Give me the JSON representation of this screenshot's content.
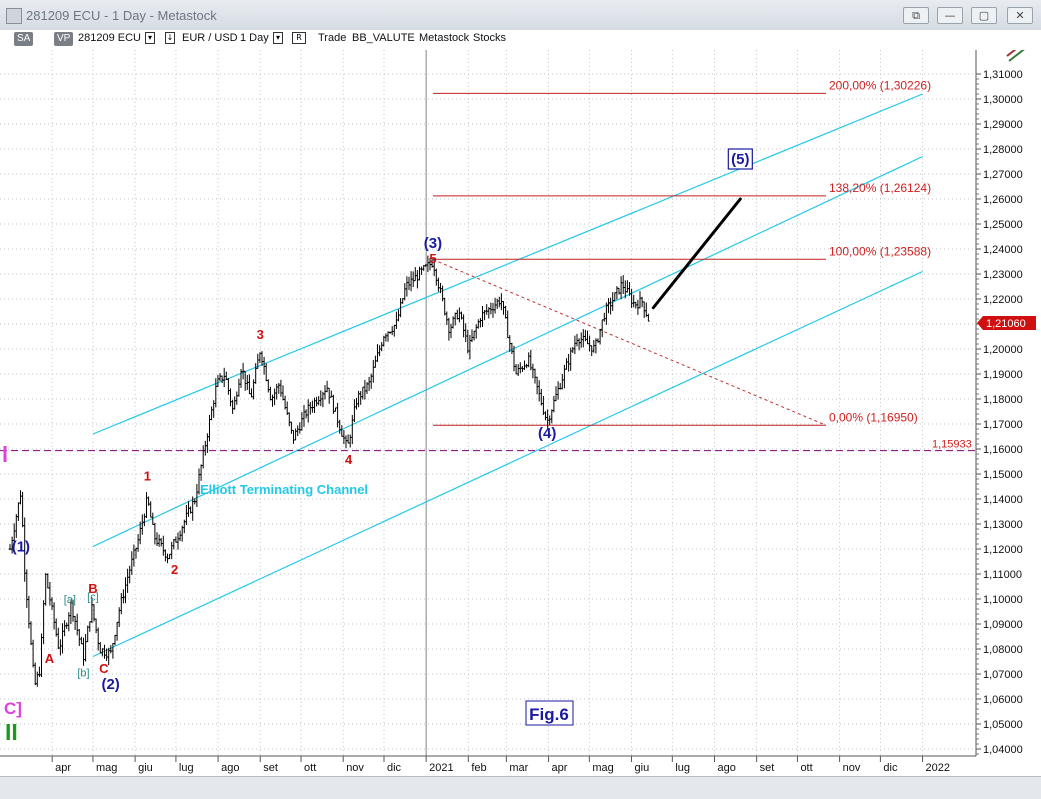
{
  "window": {
    "title": "281209 ECU - 1 Day - Metastock",
    "buttons": [
      "⧉",
      "—",
      "▢",
      "✕"
    ]
  },
  "toolbar": {
    "tag_sa": "SA",
    "tag_vp": "VP",
    "symbol": "281209 ECU",
    "dd1": "▾",
    "dd2": "↓",
    "name": "EUR / USD",
    "period": "1 Day",
    "dd3": "▾",
    "dd4": "R",
    "mode": "Trade",
    "indicator": "BB_VALUTE",
    "source": "Metastock",
    "asset": "Stocks"
  },
  "colors": {
    "background": "#ffffff",
    "grid": "#c0c6cc",
    "price_bars": "#000000",
    "channel": "#22c8e8",
    "fib_line": "#c42020",
    "fib_text": "#d02020",
    "wave_major": "#1a1aa0",
    "wave_minor": "#d01010",
    "wave_sub": "#2a8a8a",
    "magenta": "#e040e0",
    "dashed_level": "#800070",
    "green": "#1a9a1a"
  },
  "chart_data": {
    "type": "ohlc",
    "symbol": "EUR / USD",
    "x_tick_labels": [
      "apr",
      "mag",
      "giu",
      "lug",
      "ago",
      "set",
      "ott",
      "nov",
      "dic",
      "2021",
      "feb",
      "mar",
      "apr",
      "mag",
      "giu",
      "lug",
      "ago",
      "set",
      "ott",
      "nov",
      "dic",
      "2022"
    ],
    "y_tick_labels": [
      "1,31000",
      "1,30000",
      "1,29000",
      "1,28000",
      "1,27000",
      "1,26000",
      "1,25000",
      "1,24000",
      "1,23000",
      "1,22000",
      "1,21000",
      "1,20000",
      "1,19000",
      "1,18000",
      "1,17000",
      "1,16000",
      "1,15000",
      "1,14000",
      "1,13000",
      "1,12000",
      "1,11000",
      "1,10000",
      "1,09000",
      "1,08000",
      "1,07000",
      "1,06000",
      "1,05000",
      "1,04000"
    ],
    "ylim": [
      1.036,
      1.32
    ],
    "last_price_label": "1,21060",
    "horizontal_level": {
      "value": 1.15933,
      "label": "1,15933"
    },
    "price_path": [
      [
        "2020-03-01",
        1.12
      ],
      [
        "2020-03-09",
        1.143
      ],
      [
        "2020-03-12",
        1.11
      ],
      [
        "2020-03-19",
        1.065
      ],
      [
        "2020-03-23",
        1.072
      ],
      [
        "2020-03-27",
        1.11
      ],
      [
        "2020-04-01",
        1.095
      ],
      [
        "2020-04-06",
        1.08
      ],
      [
        "2020-04-15",
        1.098
      ],
      [
        "2020-04-24",
        1.077
      ],
      [
        "2020-04-30",
        1.097
      ],
      [
        "2020-05-06",
        1.08
      ],
      [
        "2020-05-14",
        1.078
      ],
      [
        "2020-05-20",
        1.095
      ],
      [
        "2020-05-27",
        1.11
      ],
      [
        "2020-06-03",
        1.123
      ],
      [
        "2020-06-10",
        1.14
      ],
      [
        "2020-06-15",
        1.125
      ],
      [
        "2020-06-25",
        1.117
      ],
      [
        "2020-07-02",
        1.125
      ],
      [
        "2020-07-15",
        1.14
      ],
      [
        "2020-07-24",
        1.166
      ],
      [
        "2020-07-31",
        1.186
      ],
      [
        "2020-08-06",
        1.19
      ],
      [
        "2020-08-12",
        1.175
      ],
      [
        "2020-08-18",
        1.193
      ],
      [
        "2020-08-25",
        1.18
      ],
      [
        "2020-09-01",
        1.2
      ],
      [
        "2020-09-09",
        1.18
      ],
      [
        "2020-09-15",
        1.186
      ],
      [
        "2020-09-25",
        1.164
      ],
      [
        "2020-10-05",
        1.175
      ],
      [
        "2020-10-20",
        1.185
      ],
      [
        "2020-11-04",
        1.16
      ],
      [
        "2020-11-11",
        1.18
      ],
      [
        "2020-11-20",
        1.186
      ],
      [
        "2020-12-01",
        1.206
      ],
      [
        "2020-12-10",
        1.21
      ],
      [
        "2020-12-17",
        1.225
      ],
      [
        "2021-01-06",
        1.235
      ],
      [
        "2021-01-18",
        1.208
      ],
      [
        "2021-01-25",
        1.215
      ],
      [
        "2021-02-01",
        1.2
      ],
      [
        "2021-02-10",
        1.213
      ],
      [
        "2021-02-25",
        1.22
      ],
      [
        "2021-03-08",
        1.19
      ],
      [
        "2021-03-17",
        1.196
      ],
      [
        "2021-03-31",
        1.171
      ],
      [
        "2021-04-12",
        1.19
      ],
      [
        "2021-04-22",
        1.205
      ],
      [
        "2021-05-05",
        1.2
      ],
      [
        "2021-05-12",
        1.214
      ],
      [
        "2021-05-25",
        1.226
      ],
      [
        "2021-06-03",
        1.218
      ],
      [
        "2021-06-09",
        1.219
      ],
      [
        "2021-06-14",
        1.211
      ]
    ],
    "projection": [
      [
        "2021-06-17",
        1.2165
      ],
      [
        "2021-08-20",
        1.26
      ]
    ],
    "wave4_target_line": [
      [
        "2021-01-06",
        1.2358
      ],
      [
        "2021-10-22",
        1.1695
      ]
    ],
    "channels": [
      [
        [
          "2020-05-01",
          1.166
        ],
        [
          "2022-01-01",
          1.302
        ]
      ],
      [
        [
          "2020-05-01",
          1.121
        ],
        [
          "2022-01-01",
          1.277
        ]
      ],
      [
        [
          "2020-05-01",
          1.077
        ],
        [
          "2022-01-01",
          1.231
        ]
      ]
    ],
    "fib_levels": [
      {
        "label": "200,00% (1,30226)",
        "value": 1.30226
      },
      {
        "label": "138,20% (1,26124)",
        "value": 1.26124
      },
      {
        "label": "100,00% (1,23588)",
        "value": 1.23588
      },
      {
        "label": "0,00% (1,16950)",
        "value": 1.1695
      }
    ],
    "fib_range": [
      "2021-01-06",
      "2021-10-22"
    ],
    "channel_label": "Elliott Terminating Channel",
    "figure_label": "Fig.6",
    "wave_labels": [
      {
        "text": "(1)",
        "date": "2020-03-09",
        "price": 1.119,
        "style": "major"
      },
      {
        "text": "(2)",
        "date": "2020-05-14",
        "price": 1.064,
        "style": "major"
      },
      {
        "text": "(3)",
        "date": "2021-01-06",
        "price": 1.2405,
        "style": "major"
      },
      {
        "text": "(4)",
        "date": "2021-03-31",
        "price": 1.1645,
        "style": "major"
      },
      {
        "text": "(5)",
        "date": "2021-08-20",
        "price": 1.274,
        "style": "boxed"
      },
      {
        "text": "A",
        "date": "2020-03-30",
        "price": 1.0745,
        "style": "minor"
      },
      {
        "text": "B",
        "date": "2020-05-01",
        "price": 1.1025,
        "style": "minor"
      },
      {
        "text": "C",
        "date": "2020-05-09",
        "price": 1.0705,
        "style": "minor"
      },
      {
        "text": "1",
        "date": "2020-06-10",
        "price": 1.1475,
        "style": "minor"
      },
      {
        "text": "2",
        "date": "2020-06-30",
        "price": 1.11,
        "style": "minor"
      },
      {
        "text": "3",
        "date": "2020-09-01",
        "price": 1.204,
        "style": "minor"
      },
      {
        "text": "4",
        "date": "2020-11-05",
        "price": 1.154,
        "style": "minor"
      },
      {
        "text": "5",
        "date": "2021-01-06",
        "price": 1.2345,
        "style": "minor"
      },
      {
        "text": "[a]",
        "date": "2020-04-14",
        "price": 1.0985,
        "style": "sub"
      },
      {
        "text": "[b]",
        "date": "2020-04-24",
        "price": 1.069,
        "style": "sub"
      },
      {
        "text": "[c]",
        "date": "2020-05-01",
        "price": 1.0995,
        "style": "sub"
      }
    ],
    "left_markers": [
      {
        "text": "C]",
        "style": "magenta"
      },
      {
        "text": "II",
        "style": "green"
      }
    ]
  }
}
